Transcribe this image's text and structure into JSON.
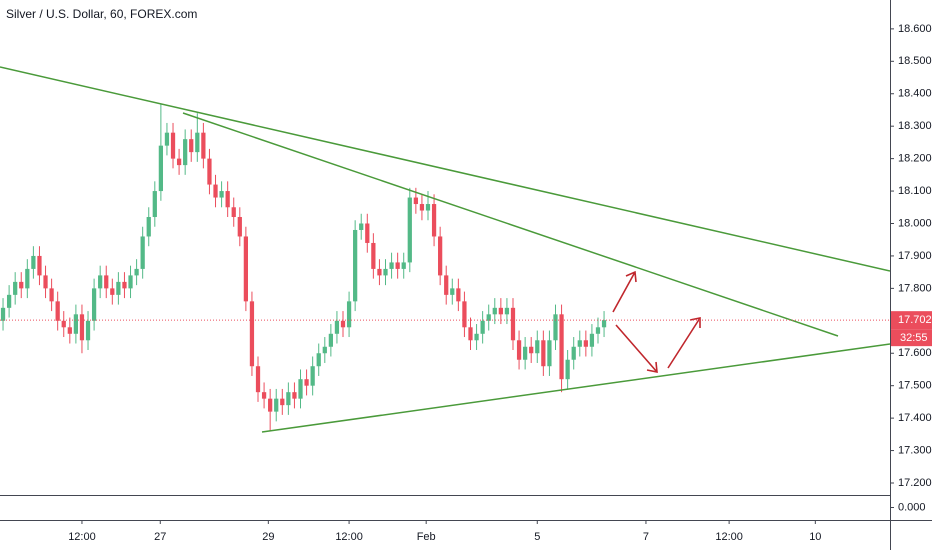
{
  "chart_data": {
    "type": "candlestick",
    "title": "Silver / U.S. Dollar, 60, FOREX.com",
    "up_color": "#53b987",
    "down_color": "#eb4d5c",
    "open": [
      17.7,
      17.74,
      17.78,
      17.82,
      17.8,
      17.86,
      17.9,
      17.84,
      17.8,
      17.76,
      17.7,
      17.68,
      17.66,
      17.72,
      17.64,
      17.7,
      17.8,
      17.84,
      17.8,
      17.78,
      17.82,
      17.8,
      17.84,
      17.86,
      17.96,
      18.02,
      18.1,
      18.24,
      18.28,
      18.2,
      18.18,
      18.26,
      18.22,
      18.28,
      18.2,
      18.12,
      18.08,
      18.1,
      18.05,
      18.02,
      17.96,
      17.76,
      17.56,
      17.48,
      17.46,
      17.42,
      17.46,
      17.44,
      17.48,
      17.46,
      17.52,
      17.5,
      17.56,
      17.6,
      17.62,
      17.66,
      17.7,
      17.68,
      17.76,
      17.98,
      18.0,
      17.94,
      17.86,
      17.84,
      17.86,
      17.88,
      17.86,
      17.88,
      18.08,
      18.06,
      18.04,
      18.06,
      17.96,
      17.84,
      17.78,
      17.8,
      17.76,
      17.68,
      17.64,
      17.66,
      17.7,
      17.72,
      17.74,
      17.72,
      17.74,
      17.64,
      17.58,
      17.62,
      17.6,
      17.64,
      17.56,
      17.64,
      17.72,
      17.52,
      17.58,
      17.62,
      17.64,
      17.62,
      17.66,
      17.68
    ],
    "high": [
      17.77,
      17.81,
      17.85,
      17.85,
      17.89,
      17.93,
      17.93,
      17.87,
      17.83,
      17.79,
      17.73,
      17.71,
      17.75,
      17.75,
      17.73,
      17.83,
      17.87,
      17.87,
      17.83,
      17.85,
      17.85,
      17.87,
      17.89,
      17.99,
      18.05,
      18.13,
      18.37,
      18.31,
      18.31,
      18.23,
      18.29,
      18.29,
      18.34,
      18.31,
      18.23,
      18.15,
      18.13,
      18.13,
      18.08,
      18.05,
      17.99,
      17.79,
      17.59,
      17.51,
      17.49,
      17.49,
      17.49,
      17.51,
      17.51,
      17.55,
      17.55,
      17.59,
      17.63,
      17.65,
      17.69,
      17.73,
      17.73,
      17.79,
      18.01,
      18.03,
      18.03,
      17.97,
      17.89,
      17.89,
      17.91,
      17.91,
      17.91,
      18.11,
      18.11,
      18.09,
      18.1,
      18.09,
      17.99,
      17.87,
      17.83,
      17.83,
      17.79,
      17.71,
      17.69,
      17.73,
      17.75,
      17.77,
      17.77,
      17.77,
      17.77,
      17.67,
      17.65,
      17.65,
      17.67,
      17.67,
      17.67,
      17.75,
      17.75,
      17.61,
      17.65,
      17.67,
      17.67,
      17.69,
      17.71,
      17.73
    ],
    "low": [
      17.67,
      17.71,
      17.75,
      17.77,
      17.77,
      17.83,
      17.81,
      17.77,
      17.73,
      17.67,
      17.65,
      17.63,
      17.63,
      17.6,
      17.61,
      17.67,
      17.77,
      17.77,
      17.75,
      17.75,
      17.77,
      17.77,
      17.81,
      17.83,
      17.93,
      17.99,
      18.07,
      18.21,
      18.17,
      18.15,
      18.15,
      18.19,
      18.19,
      18.17,
      18.09,
      18.05,
      18.05,
      18.02,
      17.99,
      17.93,
      17.73,
      17.53,
      17.45,
      17.43,
      17.36,
      17.39,
      17.41,
      17.41,
      17.43,
      17.43,
      17.47,
      17.47,
      17.53,
      17.57,
      17.59,
      17.63,
      17.65,
      17.65,
      17.73,
      17.95,
      17.91,
      17.83,
      17.81,
      17.81,
      17.83,
      17.83,
      17.83,
      17.85,
      18.03,
      18.01,
      18.01,
      17.93,
      17.81,
      17.75,
      17.75,
      17.73,
      17.65,
      17.61,
      17.61,
      17.63,
      17.67,
      17.69,
      17.69,
      17.69,
      17.61,
      17.55,
      17.55,
      17.57,
      17.57,
      17.53,
      17.53,
      17.61,
      17.48,
      17.49,
      17.55,
      17.59,
      17.59,
      17.59,
      17.63,
      17.65
    ],
    "close": [
      17.74,
      17.78,
      17.82,
      17.8,
      17.86,
      17.9,
      17.84,
      17.8,
      17.76,
      17.7,
      17.68,
      17.66,
      17.72,
      17.64,
      17.7,
      17.8,
      17.84,
      17.8,
      17.78,
      17.82,
      17.8,
      17.84,
      17.86,
      17.96,
      18.02,
      18.1,
      18.24,
      18.28,
      18.2,
      18.18,
      18.26,
      18.22,
      18.28,
      18.2,
      18.12,
      18.08,
      18.1,
      18.05,
      18.02,
      17.96,
      17.76,
      17.56,
      17.48,
      17.46,
      17.42,
      17.46,
      17.44,
      17.48,
      17.46,
      17.52,
      17.5,
      17.56,
      17.6,
      17.62,
      17.66,
      17.7,
      17.68,
      17.76,
      17.98,
      18.0,
      17.94,
      17.86,
      17.84,
      17.86,
      17.88,
      17.86,
      17.88,
      18.08,
      18.06,
      18.04,
      18.06,
      17.96,
      17.84,
      17.78,
      17.8,
      17.76,
      17.68,
      17.64,
      17.66,
      17.7,
      17.72,
      17.74,
      17.72,
      17.74,
      17.64,
      17.58,
      17.62,
      17.6,
      17.64,
      17.56,
      17.64,
      17.72,
      17.52,
      17.58,
      17.62,
      17.64,
      17.62,
      17.66,
      17.68,
      17.702
    ],
    "xlim": [
      -0.5,
      146.1
    ],
    "xticks": [
      {
        "value": 13.0,
        "label": "12:00"
      },
      {
        "value": 25.9,
        "label": "27"
      },
      {
        "value": 43.7,
        "label": "29"
      },
      {
        "value": 57.0,
        "label": "12:00"
      },
      {
        "value": 69.7,
        "label": "Feb"
      },
      {
        "value": 88.0,
        "label": "5"
      },
      {
        "value": 105.9,
        "label": "7"
      },
      {
        "value": 119.6,
        "label": "12:00"
      },
      {
        "value": 133.8,
        "label": "10"
      }
    ],
    "ylim": [
      17.163,
      18.689
    ],
    "yticks": [
      {
        "value": 18.6,
        "label": "18.600"
      },
      {
        "value": 18.5,
        "label": "18.500"
      },
      {
        "value": 18.4,
        "label": "18.400"
      },
      {
        "value": 18.3,
        "label": "18.300"
      },
      {
        "value": 18.2,
        "label": "18.200"
      },
      {
        "value": 18.1,
        "label": "18.100"
      },
      {
        "value": 18.0,
        "label": "18.000"
      },
      {
        "value": 17.9,
        "label": "17.900"
      },
      {
        "value": 17.8,
        "label": "17.800"
      },
      {
        "value": 17.7,
        "label": "17.700"
      },
      {
        "value": 17.6,
        "label": "17.600"
      },
      {
        "value": 17.5,
        "label": "17.500"
      },
      {
        "value": 17.4,
        "label": "17.400"
      },
      {
        "value": 17.3,
        "label": "17.300"
      },
      {
        "value": 17.2,
        "label": "17.200"
      }
    ],
    "last_price": {
      "value": 17.702,
      "label": "17.702"
    },
    "countdown": "32:55",
    "lower_pane": {
      "ylim": [
        -1,
        1
      ],
      "yticks": [
        {
          "value": 0,
          "label": "0.000"
        }
      ]
    }
  }
}
